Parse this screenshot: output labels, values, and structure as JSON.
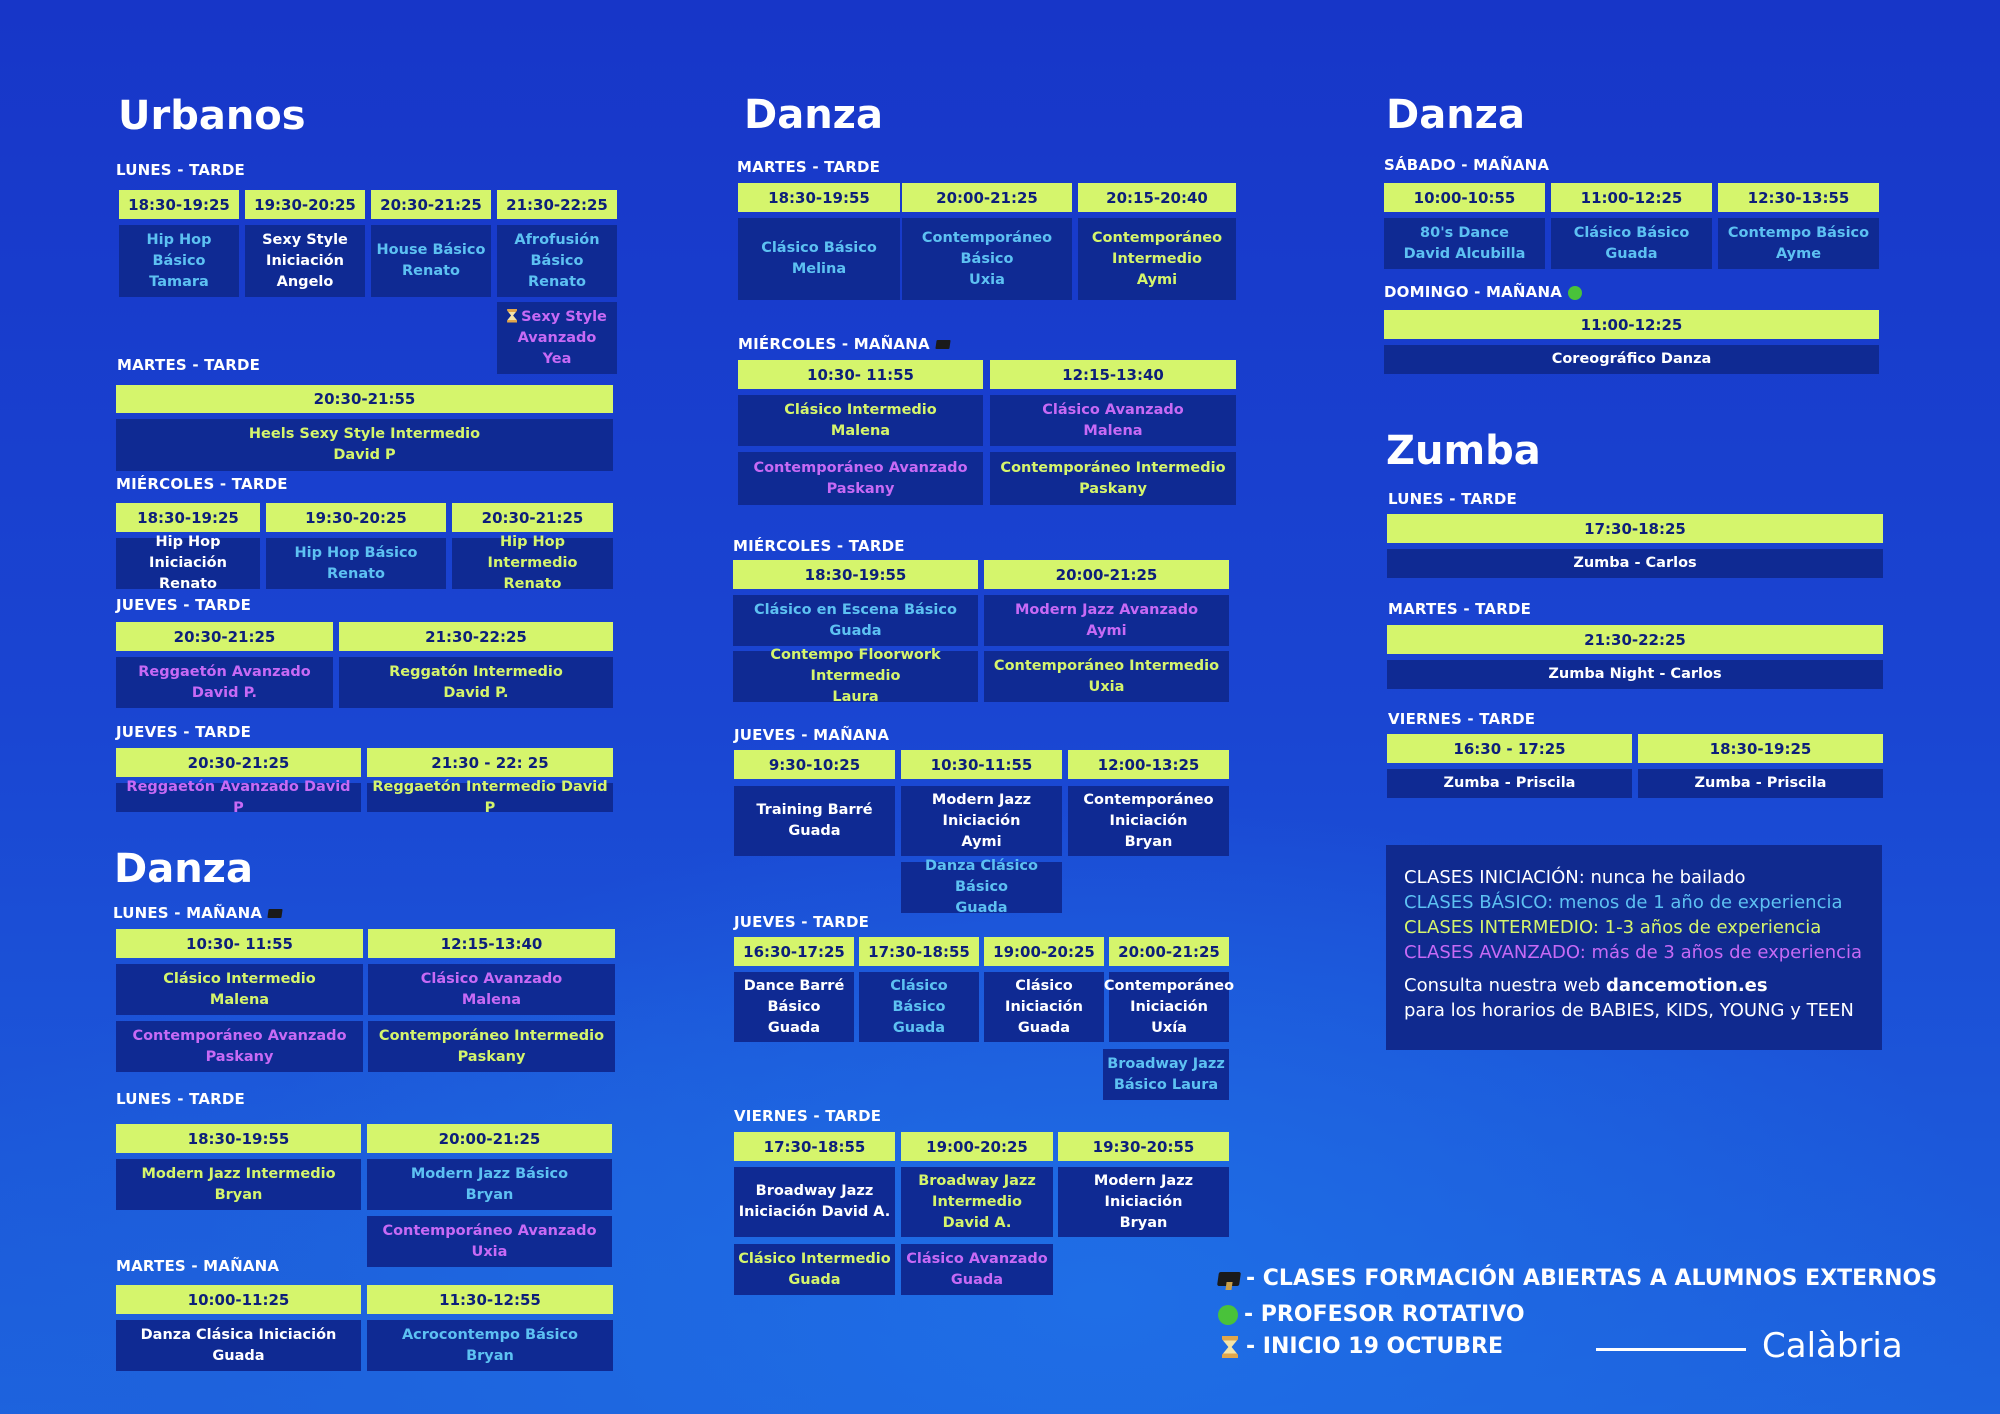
{
  "col1": {
    "title_urbanos": "Urbanos",
    "title_danza": "Danza",
    "lunes_tarde": "LUNES - TARDE",
    "u_lunes": [
      {
        "time": "18:30-19:25",
        "cls": "Hip Hop Básico\nTamara"
      },
      {
        "time": "19:30-20:25",
        "cls": "Sexy Style\nIniciación\nAngelo"
      },
      {
        "time": "20:30-21:25",
        "cls": "House Básico\nRenato"
      },
      {
        "time": "21:30-22:25",
        "cls": "Afrofusión\nBásico\nRenato"
      }
    ],
    "u_lunes_extra": "Sexy Style\nAvanzado\nYea",
    "martes_tarde": "MARTES - TARDE",
    "u_martes": {
      "time": "20:30-21:55",
      "cls": "Heels Sexy Style Intermedio\nDavid P"
    },
    "miercoles_tarde": "MIÉRCOLES - TARDE",
    "u_miercoles": [
      {
        "time": "18:30-19:25",
        "cls": "Hip Hop Iniciación\nRenato"
      },
      {
        "time": "19:30-20:25",
        "cls": "Hip Hop Básico\nRenato"
      },
      {
        "time": "20:30-21:25",
        "cls": "Hip Hop Intermedio\nRenato"
      }
    ],
    "jueves_tarde": "JUEVES - TARDE",
    "u_jueves1": [
      {
        "time": "20:30-21:25",
        "cls": "Reggaetón Avanzado\nDavid P."
      },
      {
        "time": "21:30-22:25",
        "cls": "Reggatón Intermedio\nDavid P."
      }
    ],
    "u_jueves2": [
      {
        "time": "20:30-21:25",
        "cls": "Reggaetón Avanzado David P"
      },
      {
        "time": "21:30 - 22: 25",
        "cls": "Reggaetón Intermedio David P"
      }
    ],
    "lunes_manana": "LUNES - MAÑANA",
    "d_lunes_m": [
      {
        "time": "10:30- 11:55",
        "cls": "Clásico Intermedio\nMalena",
        "cls2": "Contemporáneo Avanzado\nPaskany"
      },
      {
        "time": "12:15-13:40",
        "cls": "Clásico Avanzado\nMalena",
        "cls2": "Contemporáneo Intermedio\nPaskany"
      }
    ],
    "d_lunes_t": [
      {
        "time": "18:30-19:55",
        "cls": "Modern Jazz Intermedio\nBryan"
      },
      {
        "time": "20:00-21:25",
        "cls": "Modern Jazz Básico\nBryan",
        "cls2": "Contemporáneo Avanzado\nUxia"
      }
    ],
    "martes_manana": "MARTES - MAÑANA",
    "d_martes_m": [
      {
        "time": "10:00-11:25",
        "cls": "Danza Clásica Iniciación\nGuada"
      },
      {
        "time": "11:30-12:55",
        "cls": "Acrocontempo Básico\nBryan"
      }
    ]
  },
  "col2": {
    "title": "Danza",
    "martes_tarde": "MARTES - TARDE",
    "martes": [
      {
        "time": "18:30-19:55",
        "cls": "Clásico Básico\nMelina"
      },
      {
        "time": "20:00-21:25",
        "cls": "Contemporáneo\nBásico\nUxia"
      },
      {
        "time": "20:15-20:40",
        "cls": "Contemporáneo\nIntermedio\nAymi"
      }
    ],
    "miercoles_manana": "MIÉRCOLES - MAÑANA",
    "miercoles_m": [
      {
        "time": "10:30- 11:55",
        "cls": "Clásico Intermedio\nMalena",
        "cls2": "Contemporáneo Avanzado\nPaskany"
      },
      {
        "time": "12:15-13:40",
        "cls": "Clásico Avanzado\nMalena",
        "cls2": "Contemporáneo Intermedio\nPaskany"
      }
    ],
    "miercoles_tarde": "MIÉRCOLES - TARDE",
    "miercoles_t": [
      {
        "time": "18:30-19:55",
        "cls": "Clásico en Escena Básico\nGuada",
        "cls2": "Contempo Floorwork Intermedio\nLaura"
      },
      {
        "time": "20:00-21:25",
        "cls": "Modern Jazz Avanzado\nAymi",
        "cls2": "Contemporáneo Intermedio\nUxia"
      }
    ],
    "jueves_manana": "JUEVES - MAÑANA",
    "jueves_m": [
      {
        "time": "9:30-10:25",
        "cls": "Training Barré\nGuada"
      },
      {
        "time": "10:30-11:55",
        "cls": "Modern Jazz\nIniciación\nAymi",
        "cls2": "Danza Clásico Básico\nGuada"
      },
      {
        "time": "12:00-13:25",
        "cls": "Contemporáneo\nIniciación\nBryan"
      }
    ],
    "jueves_tarde": "JUEVES - TARDE",
    "jueves_t": [
      {
        "time": "16:30-17:25",
        "cls": "Dance Barré\nBásico\nGuada"
      },
      {
        "time": "17:30-18:55",
        "cls": "Clásico Básico\nGuada"
      },
      {
        "time": "19:00-20:25",
        "cls": "Clásico\nIniciación\nGuada"
      },
      {
        "time": "20:00-21:25",
        "cls": "Contemporáneo\nIniciación\nUxía",
        "cls2": "Broadway Jazz\nBásico Laura"
      }
    ],
    "viernes_tarde": "VIERNES - TARDE",
    "viernes": [
      {
        "time": "17:30-18:55",
        "cls": "Broadway Jazz\nIniciación David A.",
        "cls2": "Clásico Intermedio\nGuada"
      },
      {
        "time": "19:00-20:25",
        "cls": "Broadway Jazz\nIntermedio\nDavid A.",
        "cls2": "Clásico Avanzado\nGuada"
      },
      {
        "time": "19:30-20:55",
        "cls": "Modern Jazz Iniciación\nBryan"
      }
    ]
  },
  "col3": {
    "title_danza": "Danza",
    "sabado_manana": "SÁBADO - MAÑANA",
    "sabado": [
      {
        "time": "10:00-10:55",
        "cls": "80's Dance\nDavid Alcubilla"
      },
      {
        "time": "11:00-12:25",
        "cls": "Clásico Básico\nGuada"
      },
      {
        "time": "12:30-13:55",
        "cls": "Contempo Básico\nAyme"
      }
    ],
    "domingo_manana": "DOMINGO - MAÑANA",
    "domingo": {
      "time": "11:00-12:25",
      "cls": "Coreográfico Danza"
    },
    "title_zumba": "Zumba",
    "lunes_tarde": "LUNES - TARDE",
    "z_lunes": {
      "time": "17:30-18:25",
      "cls": "Zumba - Carlos"
    },
    "martes_tarde": "MARTES - TARDE",
    "z_martes": {
      "time": "21:30-22:25",
      "cls": "Zumba Night - Carlos"
    },
    "viernes_tarde": "VIERNES - TARDE",
    "z_viernes": [
      {
        "time": "16:30 - 17:25",
        "cls": "Zumba - Priscila"
      },
      {
        "time": "18:30-19:25",
        "cls": "Zumba - Priscila"
      }
    ]
  },
  "info": {
    "ini": "CLASES INICIACIÓN: nunca he bailado",
    "bas": "CLASES BÁSICO: menos de 1 año de experiencia",
    "int": "CLASES INTERMEDIO: 1-3 años de experiencia",
    "ava": "CLASES AVANZADO: más de 3 años de experiencia",
    "web_pre": "Consulta nuestra web ",
    "web": "dancemotion.es",
    "web_post": "para los horarios de BABIES, KIDS, YOUNG y TEEN"
  },
  "legend": {
    "formacion": "- CLASES FORMACIÓN ABIERTAS A ALUMNOS EXTERNOS",
    "rotativo": "- PROFESOR ROTATIVO",
    "inicio": "- INICIO 19 OCTUBRE"
  },
  "brand": "Calàbria",
  "colors": {
    "time_bg": "#d5f56c",
    "cell_bg": "#0f2a93",
    "iniciacion": "#ffffff",
    "basico": "#5dc1f2",
    "intermedio": "#d5f56c",
    "avanzado": "#c76af5"
  },
  "icons": [
    "graduation-cap-icon",
    "green-dot-icon",
    "hourglass-icon"
  ]
}
